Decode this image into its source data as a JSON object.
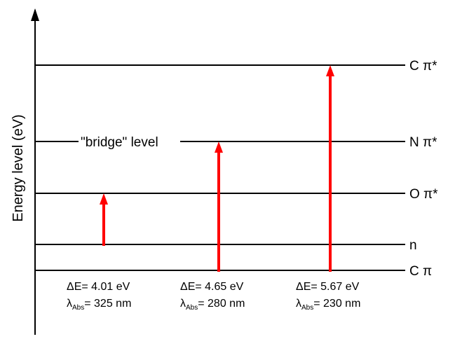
{
  "axis": {
    "ylabel": "Energy level (eV)"
  },
  "levels": [
    {
      "label": "C π*"
    },
    {
      "label": "N π*",
      "inline_label": "\"bridge\" level"
    },
    {
      "label": "O π*"
    },
    {
      "label": "n"
    },
    {
      "label": "C π"
    }
  ],
  "transitions": [
    {
      "dE_prefix": "ΔE= ",
      "dE_value": "4.01 eV",
      "lambda_symbol": "λ",
      "lambda_sub": "Abs",
      "lambda_value": "= 325 nm"
    },
    {
      "dE_prefix": "ΔE= ",
      "dE_value": "4.65 eV",
      "lambda_symbol": "λ",
      "lambda_sub": "Abs",
      "lambda_value": "= 280 nm"
    },
    {
      "dE_prefix": "ΔE= ",
      "dE_value": "5.67 eV",
      "lambda_symbol": "λ",
      "lambda_sub": "Abs",
      "lambda_value": "= 230 nm"
    }
  ],
  "colors": {
    "arrow": "#ff0000",
    "line": "#000000"
  }
}
